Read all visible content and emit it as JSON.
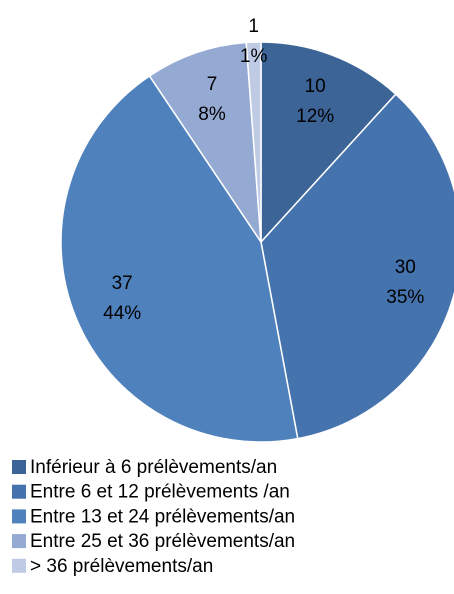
{
  "chart_data": {
    "type": "pie",
    "categories": [
      "Inférieur à 6 prélèvements/an",
      "Entre 6 et 12 prélèvements /an",
      "Entre 13 et 24 prélèvements/an",
      "Entre 25 et 36 prélèvements/an",
      "> 36 prélèvements/an"
    ],
    "values": [
      10,
      30,
      37,
      7,
      1
    ],
    "percent_labels": [
      "12%",
      "35%",
      "44%",
      "8%",
      "1%"
    ],
    "colors": [
      "#3c6497",
      "#4573ad",
      "#4f81bd",
      "#95aad3",
      "#bfcbe5"
    ]
  }
}
